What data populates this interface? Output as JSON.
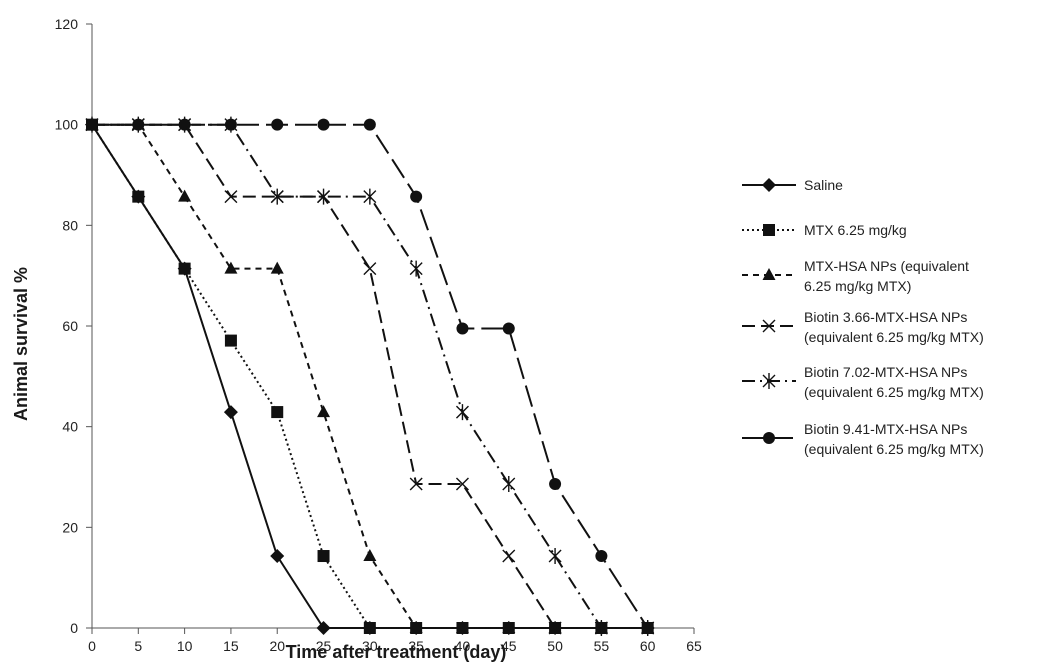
{
  "chart_data": {
    "type": "line",
    "title": "",
    "xlabel": "Time after treatment (day)",
    "ylabel": "Animal survival %",
    "xlim": [
      0,
      65
    ],
    "ylim": [
      0,
      120
    ],
    "x_ticks": [
      "0",
      "5",
      "10",
      "15",
      "20",
      "25",
      "30",
      "35",
      "40",
      "45",
      "50",
      "55",
      "60",
      "65"
    ],
    "y_ticks": [
      "0",
      "20",
      "40",
      "60",
      "80",
      "100",
      "120"
    ],
    "grid": false,
    "legend_position": "right",
    "series": [
      {
        "name": "Saline",
        "legend_lines": [
          "Saline"
        ],
        "marker": "diamond",
        "line_style": "solid",
        "x": [
          0,
          5,
          10,
          15,
          20,
          25,
          30,
          35,
          40,
          45,
          50,
          55,
          60
        ],
        "y": [
          100,
          85.7,
          71.4,
          42.9,
          14.3,
          0,
          0,
          0,
          0,
          0,
          0,
          0,
          0
        ]
      },
      {
        "name": "MTX 6.25 mg/kg",
        "legend_lines": [
          "MTX 6.25 mg/kg"
        ],
        "marker": "square",
        "line_style": "dotted",
        "x": [
          0,
          5,
          10,
          15,
          20,
          25,
          30,
          35,
          40,
          45,
          50,
          55,
          60
        ],
        "y": [
          100,
          85.7,
          71.4,
          57.1,
          42.9,
          14.3,
          0,
          0,
          0,
          0,
          0,
          0,
          0
        ]
      },
      {
        "name": "MTX-HSA NPs (equivalent 6.25 mg/kg MTX)",
        "legend_lines": [
          "MTX-HSA NPs (equivalent",
          "6.25 mg/kg MTX)"
        ],
        "marker": "triangle",
        "line_style": "short-dash",
        "x": [
          0,
          5,
          10,
          15,
          20,
          25,
          30,
          35,
          40,
          45,
          50,
          55,
          60
        ],
        "y": [
          100,
          100,
          85.7,
          71.4,
          71.4,
          42.9,
          14.3,
          0,
          0,
          0,
          0,
          0,
          0
        ]
      },
      {
        "name": "Biotin 3.66-MTX-HSA NPs (equivalent 6.25 mg/kg MTX)",
        "legend_lines": [
          "Biotin 3.66-MTX-HSA NPs",
          "(equivalent 6.25 mg/kg MTX)"
        ],
        "marker": "x",
        "line_style": "medium-dash",
        "x": [
          0,
          5,
          10,
          15,
          20,
          25,
          30,
          35,
          40,
          45,
          50,
          55,
          60
        ],
        "y": [
          100,
          100,
          100,
          85.7,
          85.7,
          85.7,
          71.4,
          28.6,
          28.6,
          14.3,
          0,
          0,
          0
        ]
      },
      {
        "name": "Biotin 7.02-MTX-HSA NPs (equivalent 6.25 mg/kg MTX)",
        "legend_lines": [
          "Biotin 7.02-MTX-HSA NPs",
          "(equivalent 6.25 mg/kg MTX)"
        ],
        "marker": "asterisk",
        "line_style": "dash-dot",
        "x": [
          0,
          5,
          10,
          15,
          20,
          25,
          30,
          35,
          40,
          45,
          50,
          55,
          60
        ],
        "y": [
          100,
          100,
          100,
          100,
          85.7,
          85.7,
          85.7,
          71.4,
          42.9,
          28.6,
          14.3,
          0,
          0
        ]
      },
      {
        "name": "Biotin 9.41-MTX-HSA NPs (equivalent 6.25 mg/kg MTX)",
        "legend_lines": [
          "Biotin 9.41-MTX-HSA NPs",
          "(equivalent 6.25 mg/kg MTX)"
        ],
        "marker": "circle",
        "line_style": "long-dash",
        "x": [
          0,
          5,
          10,
          15,
          20,
          25,
          30,
          35,
          40,
          45,
          50,
          55,
          60
        ],
        "y": [
          100,
          100,
          100,
          100,
          100,
          100,
          100,
          85.7,
          59.5,
          59.5,
          28.6,
          14.3,
          0
        ]
      }
    ]
  }
}
